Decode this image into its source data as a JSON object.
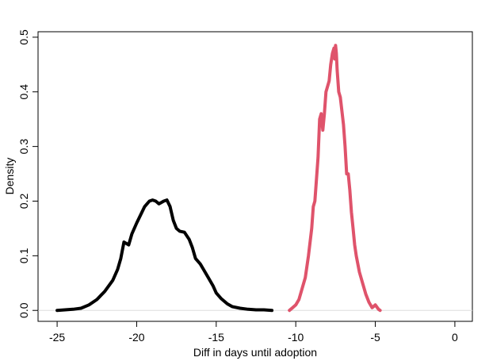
{
  "chart_data": {
    "type": "line",
    "title": "",
    "xlabel": "Diff in days until adoption",
    "ylabel": "Density",
    "xlim": [
      -26.2,
      1.1
    ],
    "ylim": [
      -0.02,
      0.51
    ],
    "xticks": [
      -25,
      -20,
      -15,
      -10,
      -5,
      0
    ],
    "xtick_labels": [
      "-25",
      "-20",
      "-15",
      "-10",
      "-5",
      "0"
    ],
    "yticks": [
      0.0,
      0.1,
      0.2,
      0.3,
      0.4,
      0.5
    ],
    "ytick_labels": [
      "0.0",
      "0.1",
      "0.2",
      "0.3",
      "0.4",
      "0.5"
    ],
    "reference_line_y": 0,
    "grid": false,
    "legend": "none",
    "series": [
      {
        "color": "#000000",
        "x": [
          -25.0,
          -24.5,
          -24.0,
          -23.5,
          -23.0,
          -22.5,
          -22.0,
          -21.5,
          -21.2,
          -21.0,
          -20.8,
          -20.5,
          -20.3,
          -20.0,
          -19.5,
          -19.2,
          -19.0,
          -18.8,
          -18.6,
          -18.3,
          -18.1,
          -17.9,
          -17.7,
          -17.5,
          -17.3,
          -17.0,
          -16.7,
          -16.5,
          -16.3,
          -16.0,
          -15.8,
          -15.5,
          -15.2,
          -15.0,
          -14.7,
          -14.3,
          -14.0,
          -13.5,
          -13.0,
          -12.5,
          -12.0,
          -11.5
        ],
        "y": [
          0.0,
          0.001,
          0.002,
          0.004,
          0.01,
          0.02,
          0.035,
          0.055,
          0.075,
          0.095,
          0.125,
          0.12,
          0.14,
          0.16,
          0.19,
          0.2,
          0.202,
          0.2,
          0.195,
          0.2,
          0.202,
          0.19,
          0.165,
          0.15,
          0.145,
          0.143,
          0.13,
          0.115,
          0.095,
          0.085,
          0.075,
          0.06,
          0.045,
          0.032,
          0.022,
          0.012,
          0.007,
          0.004,
          0.002,
          0.001,
          0.001,
          0.0
        ]
      },
      {
        "color": "#df536b",
        "x": [
          -10.4,
          -10.2,
          -10.0,
          -9.8,
          -9.6,
          -9.4,
          -9.2,
          -9.0,
          -8.9,
          -8.8,
          -8.6,
          -8.5,
          -8.4,
          -8.3,
          -8.2,
          -8.1,
          -8.0,
          -7.9,
          -7.8,
          -7.7,
          -7.6,
          -7.55,
          -7.5,
          -7.45,
          -7.4,
          -7.3,
          -7.2,
          -7.0,
          -6.9,
          -6.8,
          -6.7,
          -6.6,
          -6.5,
          -6.4,
          -6.3,
          -6.2,
          -6.0,
          -5.8,
          -5.6,
          -5.4,
          -5.2,
          -5.0,
          -4.8,
          -4.7
        ],
        "y": [
          0.0,
          0.005,
          0.01,
          0.02,
          0.04,
          0.06,
          0.1,
          0.15,
          0.19,
          0.2,
          0.28,
          0.35,
          0.36,
          0.33,
          0.36,
          0.4,
          0.41,
          0.42,
          0.45,
          0.47,
          0.48,
          0.46,
          0.485,
          0.47,
          0.44,
          0.4,
          0.39,
          0.34,
          0.3,
          0.25,
          0.25,
          0.22,
          0.18,
          0.15,
          0.12,
          0.1,
          0.07,
          0.05,
          0.03,
          0.015,
          0.005,
          0.01,
          0.002,
          0.0
        ]
      }
    ]
  }
}
